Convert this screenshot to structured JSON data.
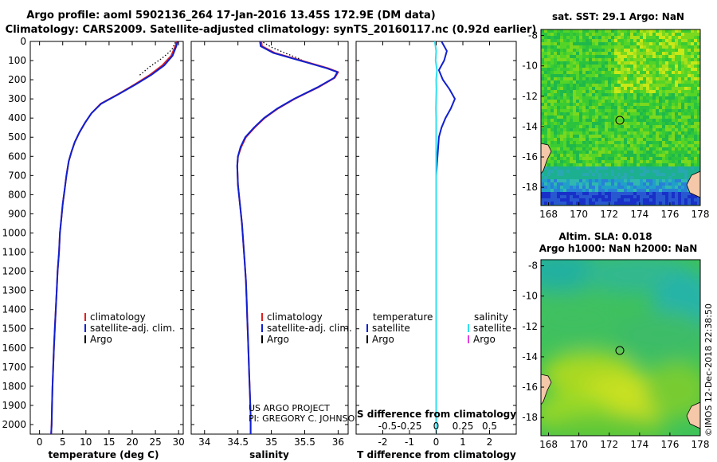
{
  "title": {
    "line1": "Argo profile: aoml 5902136_264 17-Jan-2016 13.45S 172.9E (DM data)",
    "line2": "Climatology: CARS2009. Satellite-adjusted climatology: synTS_20160117.nc (0.92d earlier)"
  },
  "credit": {
    "line1": "US ARGO PROJECT",
    "line2": "PI: GREGORY C. JOHNSON"
  },
  "imos_stamp": "©IMOS 12-Dec-2018 22:38:50",
  "colors": {
    "climatology": "#e02020",
    "satellite": "#1020d0",
    "argo": "#000000",
    "salinity_satellite": "#30e0f0",
    "salinity_argo": "#e040e0",
    "land": "#f4c8a8",
    "circle": "#000000"
  },
  "depth_axis": {
    "ylim": [
      0,
      2050
    ],
    "ticks": [
      0,
      100,
      200,
      300,
      400,
      500,
      600,
      700,
      800,
      900,
      1000,
      1100,
      1200,
      1300,
      1400,
      1500,
      1600,
      1700,
      1800,
      1900,
      2000
    ]
  },
  "chart_data": [
    {
      "type": "line",
      "id": "temperature",
      "xlabel": "temperature (deg C)",
      "ylabel": "",
      "xlim": [
        -2,
        31
      ],
      "ylim": [
        0,
        2050
      ],
      "xticks": [
        0,
        5,
        10,
        15,
        20,
        25,
        30
      ],
      "yticks": [
        0,
        100,
        200,
        300,
        400,
        500,
        600,
        700,
        800,
        900,
        1000,
        1100,
        1200,
        1300,
        1400,
        1500,
        1600,
        1700,
        1800,
        1900,
        2000
      ],
      "legend_position": "bottom-right",
      "legend": [
        "climatology",
        "satellite-adj. clim.",
        "Argo"
      ],
      "series": [
        {
          "name": "climatology",
          "color": "#e02020",
          "x": [
            29.6,
            29.3,
            28.4,
            26.5,
            23.8,
            20.5,
            17.0,
            13.2,
            11.2,
            9.8,
            8.6,
            7.6,
            6.9,
            6.3,
            5.8,
            5.4,
            5.0,
            4.7,
            4.4,
            4.2,
            3.9,
            3.7,
            3.5,
            3.3,
            3.1,
            2.95,
            2.8,
            2.7,
            2.6,
            2.5
          ],
          "y": [
            0,
            25,
            75,
            125,
            175,
            225,
            275,
            325,
            375,
            425,
            475,
            525,
            575,
            625,
            700,
            775,
            850,
            925,
            1000,
            1100,
            1200,
            1300,
            1400,
            1500,
            1600,
            1700,
            1800,
            1900,
            2000,
            2050
          ]
        },
        {
          "name": "satellite-adj. clim.",
          "color": "#1020d0",
          "x": [
            29.8,
            29.5,
            28.7,
            26.9,
            24.1,
            20.7,
            17.1,
            13.3,
            11.2,
            9.8,
            8.6,
            7.6,
            6.9,
            6.3,
            5.8,
            5.4,
            5.0,
            4.7,
            4.4,
            4.2,
            3.9,
            3.7,
            3.5,
            3.3,
            3.1,
            2.95,
            2.8,
            2.7,
            2.6,
            2.5
          ],
          "y": [
            0,
            25,
            75,
            125,
            175,
            225,
            275,
            325,
            375,
            425,
            475,
            525,
            575,
            625,
            700,
            775,
            850,
            925,
            1000,
            1100,
            1200,
            1300,
            1400,
            1500,
            1600,
            1700,
            1800,
            1900,
            2000,
            2050
          ]
        },
        {
          "name": "Argo",
          "color": "#000000",
          "style": "dotted",
          "x": [
            29.3,
            29.0,
            28.6,
            27.8,
            26.3,
            23.9,
            21.4
          ],
          "y": [
            5,
            20,
            40,
            60,
            90,
            130,
            180
          ]
        }
      ]
    },
    {
      "type": "line",
      "id": "salinity",
      "xlabel": "salinity",
      "ylabel": "",
      "xlim": [
        33.8,
        36.15
      ],
      "ylim": [
        0,
        2050
      ],
      "xticks": [
        34,
        34.5,
        35,
        35.5,
        36
      ],
      "xtick_labels": [
        "34",
        "34.5",
        "35",
        "35.5",
        "36"
      ],
      "yticks": [
        0,
        100,
        200,
        300,
        400,
        500,
        600,
        700,
        800,
        900,
        1000,
        1100,
        1200,
        1300,
        1400,
        1500,
        1600,
        1700,
        1800,
        1900,
        2000
      ],
      "legend_position": "bottom-right",
      "legend": [
        "climatology",
        "satellite-adj. clim.",
        "Argo"
      ],
      "series": [
        {
          "name": "climatology",
          "color": "#e02020",
          "x": [
            34.85,
            34.86,
            35.05,
            35.45,
            35.85,
            36.0,
            35.95,
            35.7,
            35.35,
            35.1,
            34.9,
            34.75,
            34.62,
            34.55,
            34.5,
            34.49,
            34.5,
            34.53,
            34.56,
            34.58,
            34.6,
            34.62,
            34.63,
            34.64,
            34.65,
            34.66,
            34.67,
            34.68,
            34.69,
            34.69
          ],
          "y": [
            0,
            25,
            60,
            100,
            140,
            160,
            190,
            240,
            300,
            350,
            400,
            450,
            500,
            550,
            600,
            650,
            750,
            850,
            950,
            1050,
            1150,
            1250,
            1350,
            1450,
            1550,
            1650,
            1750,
            1850,
            1950,
            2050
          ]
        },
        {
          "name": "satellite-adj. clim.",
          "color": "#1020d0",
          "x": [
            34.83,
            34.84,
            35.03,
            35.43,
            35.83,
            35.99,
            35.94,
            35.69,
            35.34,
            35.09,
            34.89,
            34.74,
            34.61,
            34.54,
            34.5,
            34.49,
            34.5,
            34.53,
            34.56,
            34.58,
            34.6,
            34.62,
            34.63,
            34.64,
            34.65,
            34.66,
            34.67,
            34.68,
            34.69,
            34.69
          ],
          "y": [
            0,
            25,
            60,
            100,
            140,
            160,
            190,
            240,
            300,
            350,
            400,
            450,
            500,
            550,
            600,
            650,
            750,
            850,
            950,
            1050,
            1150,
            1250,
            1350,
            1450,
            1550,
            1650,
            1750,
            1850,
            1950,
            2050
          ]
        },
        {
          "name": "Argo",
          "color": "#000000",
          "style": "dotted",
          "x": [
            34.88,
            35.0,
            35.2,
            35.45
          ],
          "y": [
            5,
            30,
            60,
            95
          ]
        }
      ]
    },
    {
      "type": "line",
      "id": "difference",
      "xlabel": "T difference from climatology",
      "xlabel_top": "S difference from climatology",
      "ylabel": "",
      "xlim": [
        -3,
        3
      ],
      "ylim": [
        0,
        2050
      ],
      "xticks": [
        -2,
        -1,
        0,
        1,
        2
      ],
      "xtick_labels_top": [
        "-0.5",
        "-0.25",
        "0",
        "0.25",
        "0.5"
      ],
      "yticks": [
        0,
        100,
        200,
        300,
        400,
        500,
        600,
        700,
        800,
        900,
        1000,
        1100,
        1200,
        1300,
        1400,
        1500,
        1600,
        1700,
        1800,
        1900,
        2000
      ],
      "legend_position": "bottom",
      "legend_left": {
        "title": "temperature",
        "items": [
          "satellite",
          "Argo"
        ]
      },
      "legend_right": {
        "title": "salinity",
        "items": [
          "satellite",
          "Argo"
        ]
      },
      "series": [
        {
          "name": "temperature satellite",
          "color": "#1020d0",
          "x": [
            0.2,
            0.4,
            0.3,
            0.1,
            0.25,
            0.5,
            0.7,
            0.55,
            0.35,
            0.2,
            0.1,
            0.05,
            0.0,
            0.0,
            0.0,
            0.0,
            0.0,
            0.0,
            0.0,
            0.0
          ],
          "y": [
            0,
            50,
            100,
            150,
            200,
            250,
            300,
            350,
            400,
            450,
            500,
            600,
            700,
            800,
            1000,
            1200,
            1400,
            1600,
            1800,
            2050
          ]
        },
        {
          "name": "salinity satellite",
          "color": "#30e0f0",
          "x": [
            -0.05,
            0.0,
            -0.02,
            0.03,
            0.0,
            0.01,
            0.0,
            -0.01,
            0.0,
            0.0,
            0.0,
            0.0,
            0.0,
            0.0,
            0.0,
            0.0,
            0.0,
            0.0,
            0.0,
            0.0
          ],
          "y": [
            0,
            50,
            100,
            150,
            200,
            250,
            300,
            350,
            400,
            450,
            500,
            600,
            700,
            800,
            1000,
            1200,
            1400,
            1600,
            1800,
            2050
          ]
        }
      ]
    },
    {
      "type": "heatmap",
      "id": "sst_map",
      "title": "sat. SST: 29.1 Argo: NaN",
      "xlim": [
        167.5,
        178
      ],
      "ylim": [
        -19.2,
        -7.6
      ],
      "xticks": [
        168,
        170,
        172,
        174,
        176,
        178
      ],
      "yticks": [
        -8,
        -10,
        -12,
        -14,
        -16,
        -18
      ],
      "argo_position": [
        172.9,
        -13.45
      ]
    },
    {
      "type": "heatmap",
      "id": "sla_map",
      "title": "Altim. SLA: 0.018",
      "subtitle": "Argo h1000: NaN h2000: NaN",
      "xlim": [
        167.5,
        178
      ],
      "ylim": [
        -19.2,
        -7.6
      ],
      "xticks": [
        168,
        170,
        172,
        174,
        176,
        178
      ],
      "yticks": [
        -8,
        -10,
        -12,
        -14,
        -16,
        -18
      ],
      "argo_position": [
        172.9,
        -13.45
      ]
    }
  ]
}
